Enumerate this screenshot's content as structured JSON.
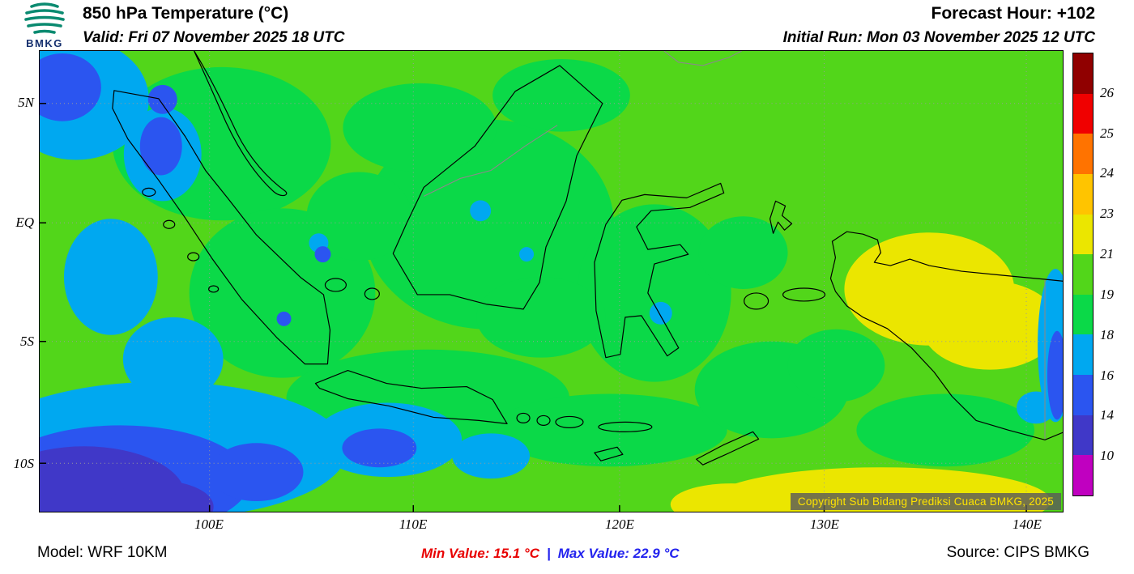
{
  "header": {
    "title": "850 hPa Temperature (°C)",
    "valid": "Valid: Fri 07 November 2025 18 UTC",
    "forecast_hour": "Forecast Hour: +102",
    "initial_run": "Initial Run: Mon 03 November 2025 12 UTC",
    "logo_text": "BMKG"
  },
  "map": {
    "lat_labels": [
      "5N",
      "EQ",
      "5S",
      "10S"
    ],
    "lon_labels": [
      "100E",
      "110E",
      "120E",
      "130E",
      "140E"
    ],
    "copyright": "Copyright Sub Bidang Prediksi Cuaca BMKG, 2025"
  },
  "colorbar": {
    "tick_labels": [
      "26",
      "25",
      "24",
      "23",
      "21",
      "19",
      "18",
      "16",
      "14",
      "10"
    ],
    "colors": [
      "#900000",
      "#f00000",
      "#ff7300",
      "#ffc400",
      "#ebe600",
      "#52d61a",
      "#0bd948",
      "#00a8f0",
      "#2b55f0",
      "#4038c8",
      "#c000c0"
    ]
  },
  "footer": {
    "model": "Model: WRF 10KM",
    "min_label": "Min Value: 15.1 °C",
    "separator": "|",
    "max_label": "Max Value: 22.9 °C",
    "source": "Source: CIPS BMKG"
  }
}
